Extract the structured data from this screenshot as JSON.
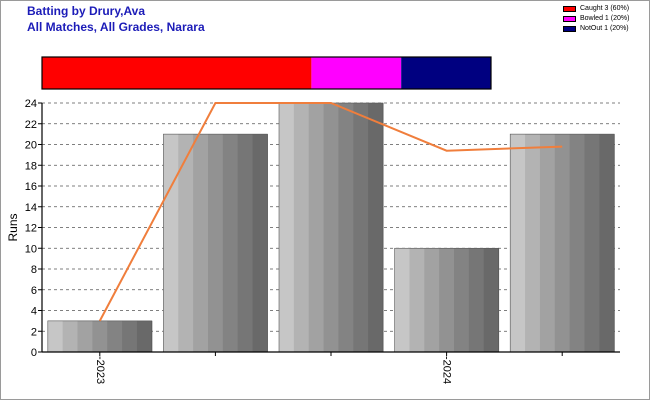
{
  "title": {
    "line1": "Batting by Drury,Ava",
    "line2": "All Matches, All Grades, Narara"
  },
  "legend": [
    {
      "label": "Caught 3 (60%)",
      "color": "#ff0000"
    },
    {
      "label": "Bowled 1 (20%)",
      "color": "#ff00ff"
    },
    {
      "label": "NotOut 1 (20%)",
      "color": "#000080"
    }
  ],
  "chart_data": {
    "type": "bar",
    "ylabel": "Runs",
    "xlabel": "",
    "ylim": [
      0,
      24
    ],
    "yticks": [
      0,
      2,
      4,
      6,
      8,
      10,
      12,
      14,
      16,
      18,
      20,
      22,
      24
    ],
    "grid": true,
    "innings": [
      1,
      2,
      3,
      4,
      5
    ],
    "values": [
      3,
      21,
      24,
      10,
      21
    ],
    "trend_line": [
      3,
      24,
      24,
      19.4,
      19.8
    ],
    "trend_color": "#f07e3c",
    "x_tick_labels": [
      {
        "label": "2023",
        "at_innings": 1
      },
      {
        "label": "2024",
        "at_innings": 4
      }
    ],
    "dismissals": [
      {
        "type": "Caught",
        "count": 3,
        "percent": 60,
        "color": "#ff0000"
      },
      {
        "type": "Bowled",
        "count": 1,
        "percent": 20,
        "color": "#ff00ff"
      },
      {
        "type": "NotOut",
        "count": 1,
        "percent": 20,
        "color": "#000080"
      }
    ]
  }
}
